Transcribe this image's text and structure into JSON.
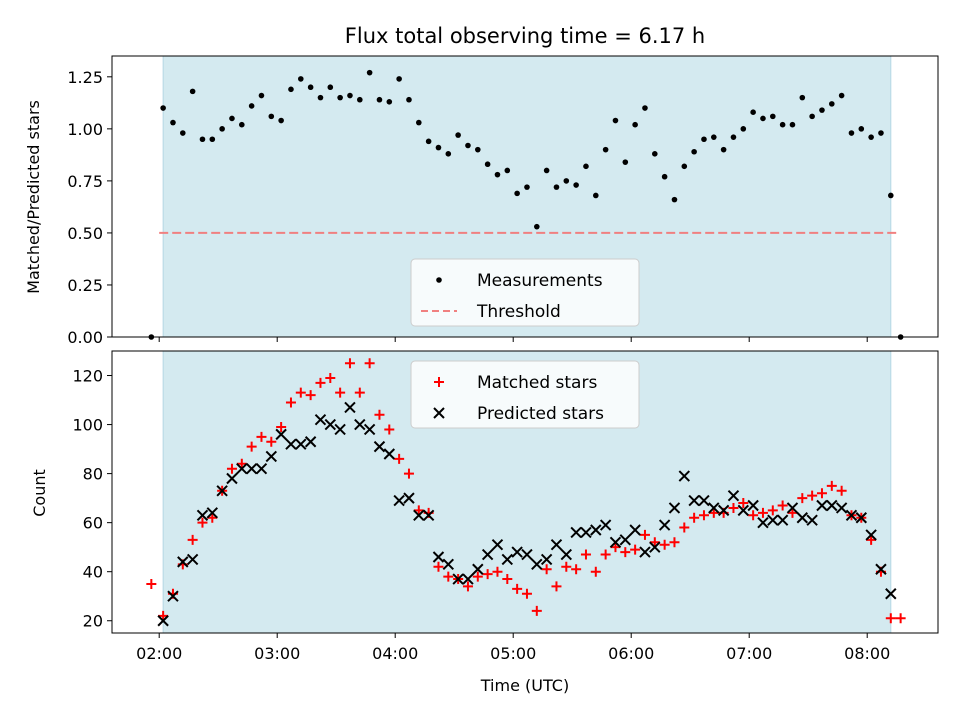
{
  "chart_data": [
    {
      "type": "scatter",
      "title": "Flux total observing time = 6.17 h",
      "xlabel": "",
      "ylabel": "Matched/Predicted stars",
      "xlim": [
        "01:36",
        "08:36"
      ],
      "ylim": [
        0,
        1.35
      ],
      "yticks": [
        "0.00",
        "0.25",
        "0.50",
        "0.75",
        "1.00",
        "1.25"
      ],
      "observing_window": [
        "02:02",
        "08:12"
      ],
      "window_color": "#d4eaf0",
      "legend": {
        "placement": "bottom-center",
        "entries": [
          "Measurements",
          "Threshold"
        ]
      },
      "threshold": {
        "name": "Threshold",
        "value": 0.5,
        "x": [
          "02:00",
          "08:15"
        ],
        "color": "#f08080",
        "style": "dashed"
      },
      "series": [
        {
          "name": "Measurements",
          "color": "#000000",
          "marker": "dot",
          "x": [
            "01:56",
            "02:02",
            "02:07",
            "02:12",
            "02:17",
            "02:22",
            "02:27",
            "02:32",
            "02:37",
            "02:42",
            "02:47",
            "02:52",
            "02:57",
            "03:02",
            "03:07",
            "03:12",
            "03:17",
            "03:22",
            "03:27",
            "03:32",
            "03:37",
            "03:42",
            "03:47",
            "03:52",
            "03:57",
            "04:02",
            "04:07",
            "04:12",
            "04:17",
            "04:22",
            "04:27",
            "04:32",
            "04:37",
            "04:42",
            "04:47",
            "04:52",
            "04:57",
            "05:02",
            "05:07",
            "05:12",
            "05:17",
            "05:22",
            "05:27",
            "05:32",
            "05:37",
            "05:42",
            "05:47",
            "05:52",
            "05:57",
            "06:02",
            "06:07",
            "06:12",
            "06:17",
            "06:22",
            "06:27",
            "06:32",
            "06:37",
            "06:42",
            "06:47",
            "06:52",
            "06:57",
            "07:02",
            "07:07",
            "07:12",
            "07:17",
            "07:22",
            "07:27",
            "07:32",
            "07:37",
            "07:42",
            "07:47",
            "07:52",
            "07:57",
            "08:02",
            "08:07",
            "08:12",
            "08:17"
          ],
          "y": [
            0.0,
            1.1,
            1.03,
            0.98,
            1.18,
            0.95,
            0.95,
            1.0,
            1.05,
            1.02,
            1.11,
            1.16,
            1.06,
            1.04,
            1.19,
            1.24,
            1.2,
            1.15,
            1.2,
            1.15,
            1.16,
            1.14,
            1.27,
            1.14,
            1.13,
            1.24,
            1.14,
            1.03,
            0.94,
            0.91,
            0.88,
            0.97,
            0.92,
            0.9,
            0.83,
            0.78,
            0.8,
            0.69,
            0.72,
            0.53,
            0.8,
            0.72,
            0.75,
            0.73,
            0.82,
            0.68,
            0.9,
            1.04,
            0.84,
            1.02,
            1.1,
            0.88,
            0.77,
            0.66,
            0.82,
            0.89,
            0.95,
            0.96,
            0.9,
            0.96,
            1.0,
            1.08,
            1.05,
            1.06,
            1.02,
            1.02,
            1.15,
            1.06,
            1.09,
            1.12,
            1.16,
            0.98,
            1.0,
            0.96,
            0.98,
            0.68,
            0.0
          ]
        }
      ]
    },
    {
      "type": "scatter",
      "title": "",
      "xlabel": "Time (UTC)",
      "ylabel": "Count",
      "xlim": [
        "01:36",
        "08:36"
      ],
      "ylim": [
        15,
        130
      ],
      "yticks": [
        "20",
        "40",
        "60",
        "80",
        "100",
        "120"
      ],
      "xticks": [
        "02:00",
        "03:00",
        "04:00",
        "05:00",
        "06:00",
        "07:00",
        "08:00"
      ],
      "observing_window": [
        "02:02",
        "08:12"
      ],
      "window_color": "#d4eaf0",
      "legend": {
        "placement": "top-center",
        "entries": [
          "Matched stars",
          "Predicted stars"
        ]
      },
      "series": [
        {
          "name": "Matched stars",
          "color": "#ff0000",
          "marker": "plus",
          "x": [
            "01:56",
            "02:02",
            "02:07",
            "02:12",
            "02:17",
            "02:22",
            "02:27",
            "02:32",
            "02:37",
            "02:42",
            "02:47",
            "02:52",
            "02:57",
            "03:02",
            "03:07",
            "03:12",
            "03:17",
            "03:22",
            "03:27",
            "03:32",
            "03:37",
            "03:42",
            "03:47",
            "03:52",
            "03:57",
            "04:02",
            "04:07",
            "04:12",
            "04:17",
            "04:22",
            "04:27",
            "04:32",
            "04:37",
            "04:42",
            "04:47",
            "04:52",
            "04:57",
            "05:02",
            "05:07",
            "05:12",
            "05:17",
            "05:22",
            "05:27",
            "05:32",
            "05:37",
            "05:42",
            "05:47",
            "05:52",
            "05:57",
            "06:02",
            "06:07",
            "06:12",
            "06:17",
            "06:22",
            "06:27",
            "06:32",
            "06:37",
            "06:42",
            "06:47",
            "06:52",
            "06:57",
            "07:02",
            "07:07",
            "07:12",
            "07:17",
            "07:22",
            "07:27",
            "07:32",
            "07:37",
            "07:42",
            "07:47",
            "07:52",
            "07:57",
            "08:02",
            "08:07",
            "08:12",
            "08:17"
          ],
          "y": [
            35,
            22,
            31,
            43,
            53,
            60,
            62,
            73,
            82,
            84,
            91,
            95,
            93,
            99,
            109,
            113,
            112,
            117,
            119,
            113,
            125,
            113,
            125,
            104,
            98,
            86,
            80,
            65,
            64,
            42,
            38,
            37,
            34,
            38,
            39,
            40,
            37,
            33,
            31,
            24,
            41,
            34,
            42,
            41,
            47,
            40,
            47,
            50,
            48,
            49,
            55,
            52,
            51,
            52,
            58,
            62,
            63,
            64,
            64,
            66,
            68,
            63,
            64,
            65,
            67,
            64,
            70,
            71,
            72,
            75,
            73,
            63,
            62,
            53,
            40,
            21,
            21
          ]
        },
        {
          "name": "Predicted stars",
          "color": "#000000",
          "marker": "x",
          "x": [
            "02:02",
            "02:07",
            "02:12",
            "02:17",
            "02:22",
            "02:27",
            "02:32",
            "02:37",
            "02:42",
            "02:47",
            "02:52",
            "02:57",
            "03:02",
            "03:07",
            "03:12",
            "03:17",
            "03:22",
            "03:27",
            "03:32",
            "03:37",
            "03:42",
            "03:47",
            "03:52",
            "03:57",
            "04:02",
            "04:07",
            "04:12",
            "04:17",
            "04:22",
            "04:27",
            "04:32",
            "04:37",
            "04:42",
            "04:47",
            "04:52",
            "04:57",
            "05:02",
            "05:07",
            "05:12",
            "05:17",
            "05:22",
            "05:27",
            "05:32",
            "05:37",
            "05:42",
            "05:47",
            "05:52",
            "05:57",
            "06:02",
            "06:07",
            "06:12",
            "06:17",
            "06:22",
            "06:27",
            "06:32",
            "06:37",
            "06:42",
            "06:47",
            "06:52",
            "06:57",
            "07:02",
            "07:07",
            "07:12",
            "07:17",
            "07:22",
            "07:27",
            "07:32",
            "07:37",
            "07:42",
            "07:47",
            "07:52",
            "07:57",
            "08:02",
            "08:07",
            "08:12"
          ],
          "y": [
            20,
            30,
            44,
            45,
            63,
            64,
            73,
            78,
            82,
            82,
            82,
            87,
            96,
            92,
            92,
            93,
            102,
            100,
            98,
            107,
            100,
            98,
            91,
            88,
            69,
            70,
            63,
            63,
            46,
            43,
            37,
            37,
            41,
            47,
            51,
            45,
            48,
            47,
            43,
            45,
            51,
            47,
            56,
            56,
            57,
            59,
            52,
            53,
            57,
            48,
            50,
            59,
            66,
            79,
            69,
            69,
            66,
            65,
            71,
            65,
            67,
            60,
            61,
            61,
            66,
            62,
            61,
            67,
            67,
            66,
            63,
            62,
            55,
            41,
            31
          ]
        }
      ]
    }
  ]
}
